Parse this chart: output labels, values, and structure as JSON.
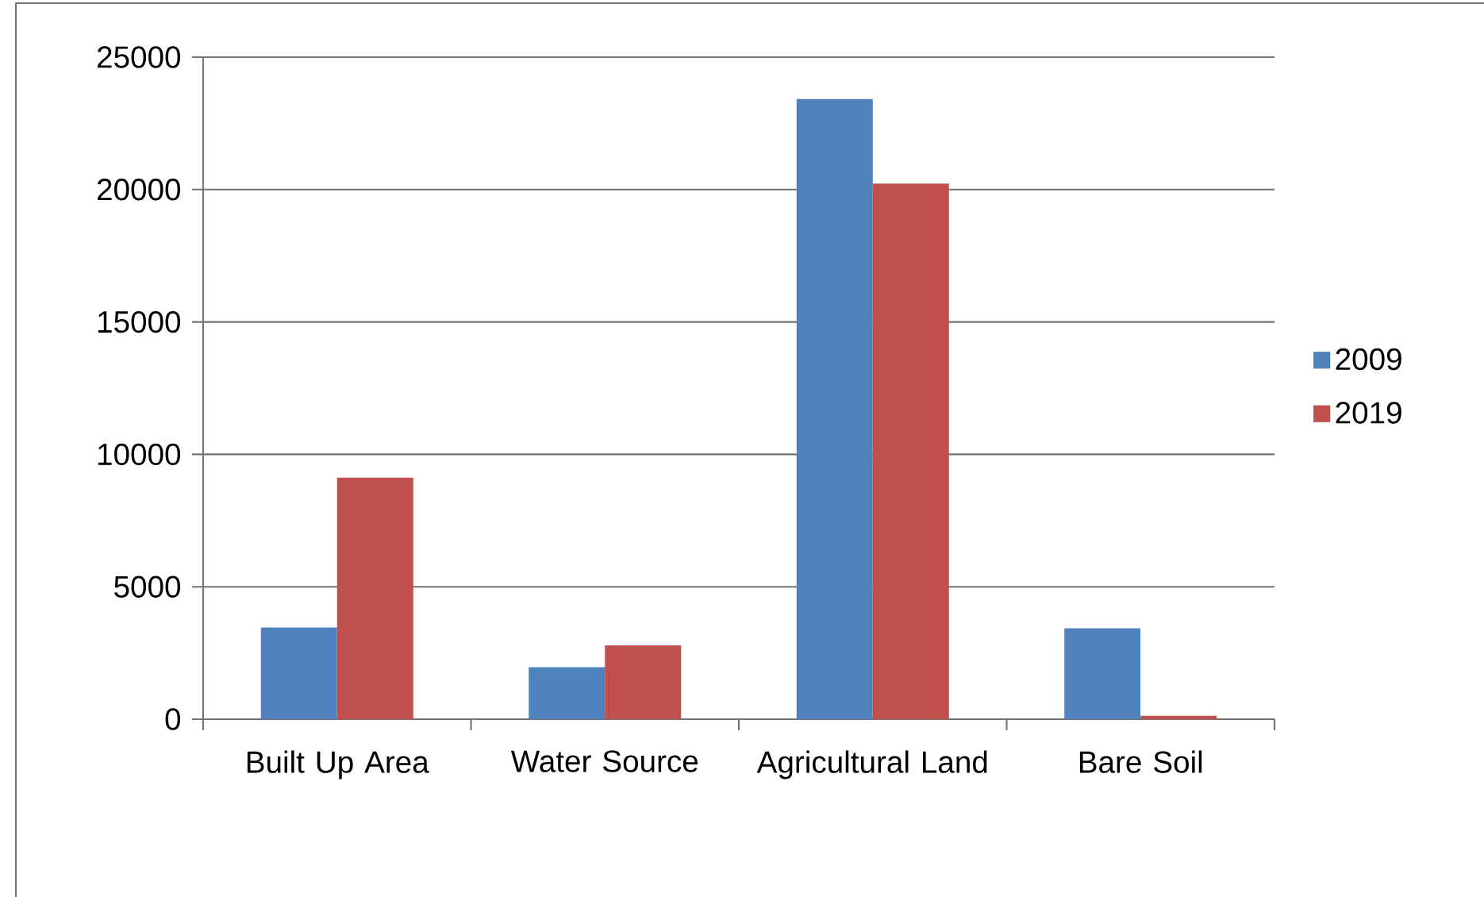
{
  "chart_data": {
    "type": "bar",
    "categories": [
      "Built Up Area",
      "Water Source",
      "Agricultural Land",
      "Bare Soil"
    ],
    "series": [
      {
        "name": "2009",
        "color": "#4f81bd",
        "values": [
          3460,
          1960,
          23420,
          3430
        ]
      },
      {
        "name": "2019",
        "color": "#c0504d",
        "values": [
          9120,
          2790,
          20230,
          130
        ]
      }
    ],
    "ylim": [
      0,
      25000
    ],
    "yticks": [
      0,
      5000,
      10000,
      15000,
      20000,
      25000
    ],
    "grid": "y",
    "legend": "right"
  }
}
